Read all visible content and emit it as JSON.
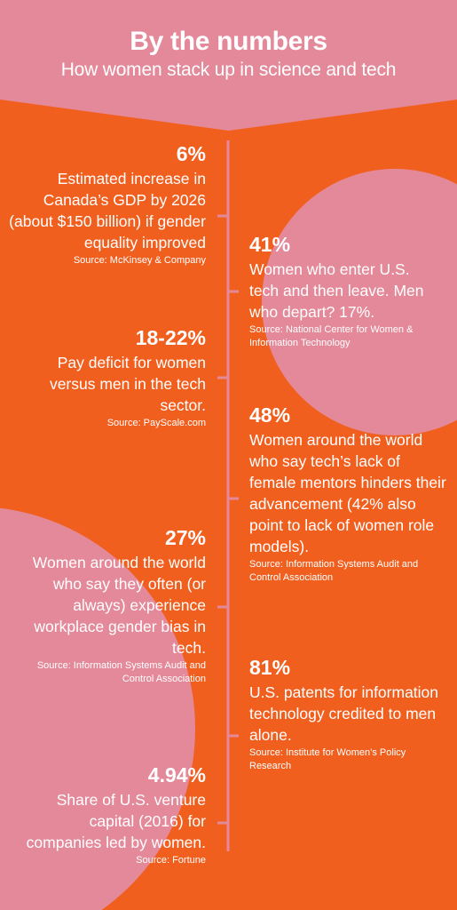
{
  "header": {
    "title": "By the numbers",
    "subtitle": "How women stack up in science and tech"
  },
  "colors": {
    "background": "#f15f1f",
    "accent_pink": "#e4899a",
    "timeline": "#e4899a",
    "text": "#ffffff"
  },
  "stats": [
    {
      "number": "6%",
      "description": "Estimated increase in Canada’s GDP by 2026 (about $150 billion) if gender equality improved",
      "source": "Source: McKinsey & Company"
    },
    {
      "number": "41%",
      "description": "Women who enter U.S. tech and then leave. Men who depart? 17%.",
      "source": "Source: National Center for Women & Information Technology"
    },
    {
      "number": "18-22%",
      "description": "Pay deficit for women versus men in the tech sector.",
      "source": "Source: PayScale.com"
    },
    {
      "number": "48%",
      "description": "Women around the world who say tech’s lack of female mentors hinders their advancement (42% also point to lack of women role models).",
      "source": "Source: Information Systems Audit and Control Association"
    },
    {
      "number": "27%",
      "description": "Women around the world who say they often (or always) experience workplace gender bias in tech.",
      "source": "Source: Information Systems Audit and Control Association"
    },
    {
      "number": "81%",
      "description": "U.S. patents for information technology credited to men alone.",
      "source": "Source: Institute for Women’s Policy Research"
    },
    {
      "number": "4.94%",
      "description": "Share of U.S. venture capital (2016) for companies led by women.",
      "source": "Source: Fortune"
    }
  ]
}
